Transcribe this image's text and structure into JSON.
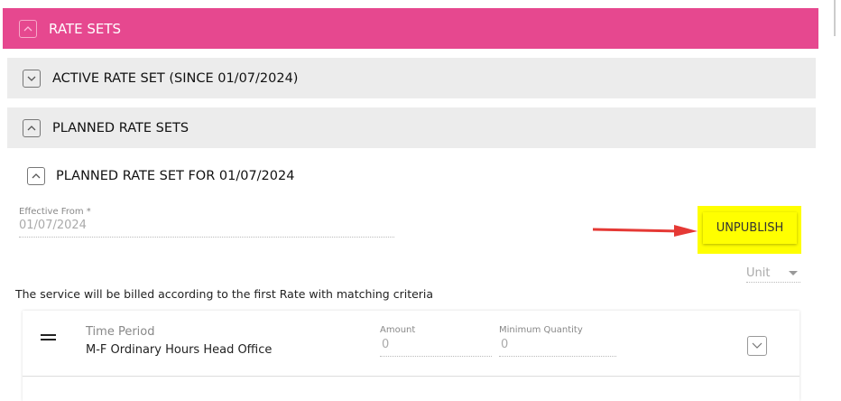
{
  "rate_sets": {
    "title": "RATE SETS",
    "expanded": true
  },
  "active_rate_set": {
    "title": "ACTIVE RATE SET (SINCE 01/07/2024)",
    "expanded": false
  },
  "planned_rate_sets": {
    "title": "PLANNED RATE SETS",
    "expanded": true
  },
  "planned_rate_set": {
    "title": "PLANNED RATE SET FOR 01/07/2024",
    "expanded": true
  },
  "effective_from": {
    "label": "Effective From *",
    "value": "01/07/2024"
  },
  "unpublish_label": "UNPUBLISH",
  "unit_select": {
    "value": "Unit"
  },
  "billing_note": "The service will be billed according to the first Rate with matching criteria",
  "rate_row": {
    "type": "Time Period",
    "name": "M-F Ordinary Hours Head Office",
    "amount_label": "Amount",
    "amount_value": "0",
    "min_qty_label": "Minimum Quantity",
    "min_qty_value": "0"
  },
  "colors": {
    "header": "#e6488f",
    "highlight": "#ffff00",
    "arrow": "#e53935"
  }
}
